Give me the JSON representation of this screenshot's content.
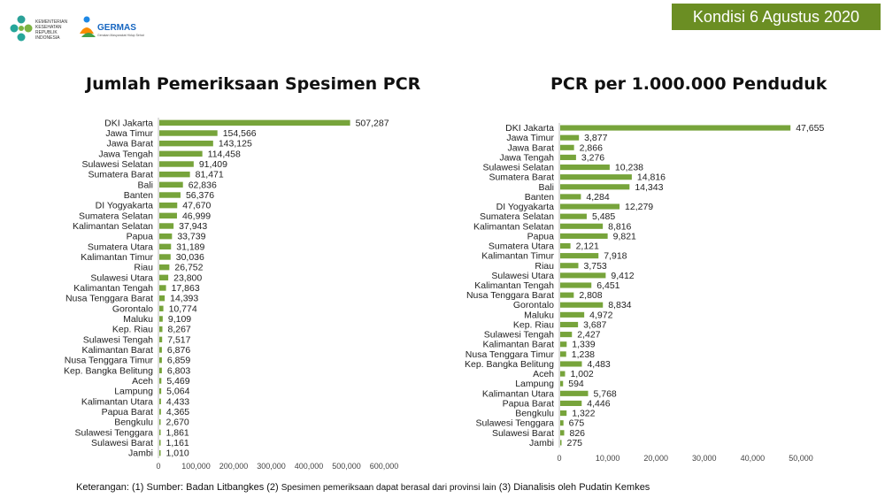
{
  "header": {
    "date_badge": "Kondisi 6 Agustus 2020",
    "logo1_text": [
      "KEMENTERIAN",
      "KESEHATAN",
      "REPUBLIK",
      "INDONESIA"
    ],
    "logo2_text": "GERMAS",
    "logo2_subtext": "Gerakan Masyarakat Hidup Sehat"
  },
  "colors": {
    "bar": "#77a43b",
    "badge": "#6b8e23"
  },
  "footnote": {
    "part1": "Keterangan: (1) Sumber: Badan Litbangkes (2) ",
    "part2": "Spesimen pemeriksaan dapat berasal dari provinsi lain",
    "part3": " (3) Dianalisis oleh Pudatin Kemkes"
  },
  "chart_data": [
    {
      "type": "bar",
      "orientation": "horizontal",
      "title": "Jumlah Pemeriksaan Spesimen PCR",
      "xlim": [
        0,
        600000
      ],
      "xticks": [
        "0",
        "100,000",
        "200,000",
        "300,000",
        "400,000",
        "500,000",
        "600,000"
      ],
      "categories": [
        "DKI Jakarta",
        "Jawa Timur",
        "Jawa Barat",
        "Jawa Tengah",
        "Sulawesi Selatan",
        "Sumatera Barat",
        "Bali",
        "Banten",
        "DI Yogyakarta",
        "Sumatera Selatan",
        "Kalimantan Selatan",
        "Papua",
        "Sumatera Utara",
        "Kalimantan Timur",
        "Riau",
        "Sulawesi Utara",
        "Kalimantan Tengah",
        "Nusa Tenggara Barat",
        "Gorontalo",
        "Maluku",
        "Kep. Riau",
        "Sulawesi Tengah",
        "Kalimantan Barat",
        "Nusa Tenggara Timur",
        "Kep. Bangka Belitung",
        "Aceh",
        "Lampung",
        "Kalimantan Utara",
        "Papua Barat",
        "Bengkulu",
        "Sulawesi Tenggara",
        "Sulawesi Barat",
        "Jambi"
      ],
      "values": [
        507287,
        154566,
        143125,
        114458,
        91409,
        81471,
        62836,
        56376,
        47670,
        46999,
        37943,
        33739,
        31189,
        30036,
        26752,
        23800,
        17863,
        14393,
        10774,
        9109,
        8267,
        7517,
        6876,
        6859,
        6803,
        5469,
        5064,
        4433,
        4365,
        2670,
        1861,
        1161,
        1010
      ],
      "labels": [
        "507,287",
        "154,566",
        "143,125",
        "114,458",
        "91,409",
        "81,471",
        "62,836",
        "56,376",
        "47,670",
        "46,999",
        "37,943",
        "33,739",
        "31,189",
        "30,036",
        "26,752",
        "23,800",
        "17,863",
        "14,393",
        "10,774",
        "9,109",
        "8,267",
        "7,517",
        "6,876",
        "6,859",
        "6,803",
        "5,469",
        "5,064",
        "4,433",
        "4,365",
        "2,670",
        "1,861",
        "1,161",
        "1,010"
      ]
    },
    {
      "type": "bar",
      "orientation": "horizontal",
      "title": "PCR per 1.000.000 Penduduk",
      "xlim": [
        0,
        50000
      ],
      "xticks": [
        "0",
        "10,000",
        "20,000",
        "30,000",
        "40,000",
        "50,000"
      ],
      "categories": [
        "DKI Jakarta",
        "Jawa Timur",
        "Jawa Barat",
        "Jawa Tengah",
        "Sulawesi Selatan",
        "Sumatera Barat",
        "Bali",
        "Banten",
        "DI Yogyakarta",
        "Sumatera Selatan",
        "Kalimantan Selatan",
        "Papua",
        "Sumatera Utara",
        "Kalimantan Timur",
        "Riau",
        "Sulawesi Utara",
        "Kalimantan Tengah",
        "Nusa Tenggara Barat",
        "Gorontalo",
        "Maluku",
        "Kep. Riau",
        "Sulawesi Tengah",
        "Kalimantan Barat",
        "Nusa Tenggara Timur",
        "Kep. Bangka Belitung",
        "Aceh",
        "Lampung",
        "Kalimantan Utara",
        "Papua Barat",
        "Bengkulu",
        "Sulawesi Tenggara",
        "Sulawesi Barat",
        "Jambi"
      ],
      "values": [
        47655,
        3877,
        2866,
        3276,
        10238,
        14816,
        14343,
        4284,
        12279,
        5485,
        8816,
        9821,
        2121,
        7918,
        3753,
        9412,
        6451,
        2808,
        8834,
        4972,
        3687,
        2427,
        1339,
        1238,
        4483,
        1002,
        594,
        5768,
        4446,
        1322,
        675,
        826,
        275
      ],
      "labels": [
        "47,655",
        "3,877",
        "2,866",
        "3,276",
        "10,238",
        "14,816",
        "14,343",
        "4,284",
        "12,279",
        "5,485",
        "8,816",
        "9,821",
        "2,121",
        "7,918",
        "3,753",
        "9,412",
        "6,451",
        "2,808",
        "8,834",
        "4,972",
        "3,687",
        "2,427",
        "1,339",
        "1,238",
        "4,483",
        "1,002",
        "594",
        "5,768",
        "4,446",
        "1,322",
        "675",
        "826",
        "275"
      ]
    }
  ]
}
